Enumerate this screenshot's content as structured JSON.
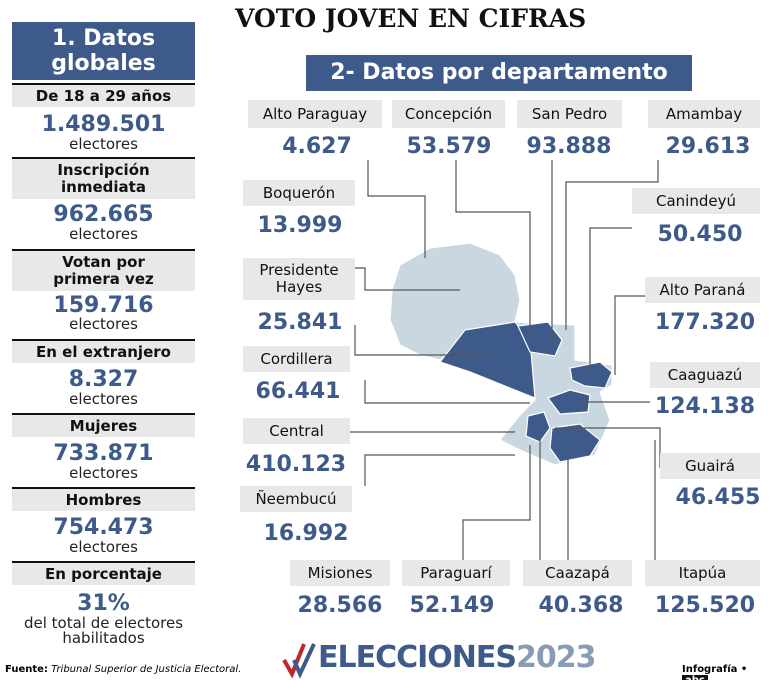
{
  "title": "VOTO JOVEN EN CIFRAS",
  "global": {
    "heading": "1. Datos globales",
    "items": [
      {
        "label": "De 18 a 29 años",
        "value": "1.489.501",
        "unit": "electores"
      },
      {
        "label": "Inscripción inmediata",
        "value": "962.665",
        "unit": "electores"
      },
      {
        "label": "Votan por primera vez",
        "value": "159.716",
        "unit": "electores"
      },
      {
        "label": "En el extranjero",
        "value": "8.327",
        "unit": "electores"
      },
      {
        "label": "Mujeres",
        "value": "733.871",
        "unit": "electores"
      },
      {
        "label": "Hombres",
        "value": "754.473",
        "unit": "electores"
      },
      {
        "label": "En porcentaje",
        "value": "31%",
        "unit": "del total de electores habilitados"
      }
    ]
  },
  "departments": {
    "heading": "2- Datos por departamento",
    "items": [
      {
        "name": "Alto Paraguay",
        "value": "4.627"
      },
      {
        "name": "Concepción",
        "value": "53.579"
      },
      {
        "name": "San Pedro",
        "value": "93.888"
      },
      {
        "name": "Amambay",
        "value": "29.613"
      },
      {
        "name": "Boquerón",
        "value": "13.999"
      },
      {
        "name": "Canindeyú",
        "value": "50.450"
      },
      {
        "name": "Presidente Hayes",
        "value": "25.841"
      },
      {
        "name": "Alto Paraná",
        "value": "177.320"
      },
      {
        "name": "Cordillera",
        "value": "66.441"
      },
      {
        "name": "Caaguazú",
        "value": "124.138"
      },
      {
        "name": "Central",
        "value": "410.123"
      },
      {
        "name": "Guairá",
        "value": "46.455"
      },
      {
        "name": "Ñeembucú",
        "value": "16.992"
      },
      {
        "name": "Misiones",
        "value": "28.566"
      },
      {
        "name": "Paraguarí",
        "value": "52.149"
      },
      {
        "name": "Caazapá",
        "value": "40.368"
      },
      {
        "name": "Itapúa",
        "value": "125.520"
      }
    ]
  },
  "footer": {
    "source_label": "Fuente:",
    "source": "Tribunal Superior de Justicia Electoral.",
    "brand": "ELECCIONES",
    "year": "2023",
    "credit": "Infografía •",
    "logo": "abc"
  }
}
